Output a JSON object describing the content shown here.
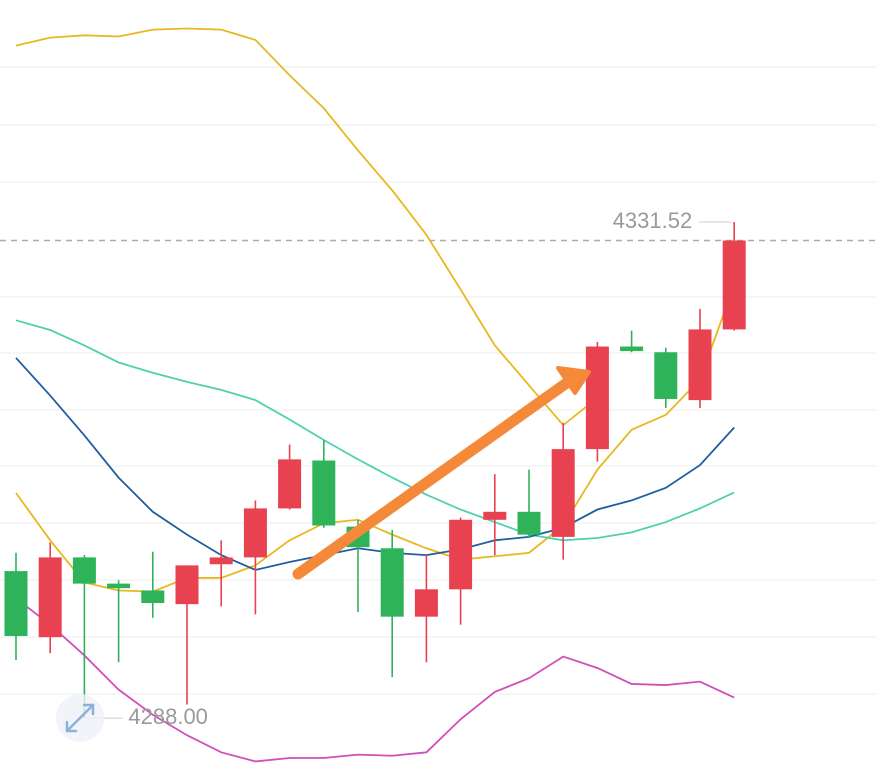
{
  "chart_data": {
    "type": "candlestick",
    "ylim": [
      4282.66,
      4351.0
    ],
    "open": [
      4300.9,
      4295.1,
      4302.1,
      4299.8,
      4299.2,
      4298.0,
      4301.5,
      4302.1,
      4306.4,
      4310.6,
      4304.8,
      4302.9,
      4296.9,
      4299.3,
      4305.4,
      4306.1,
      4303.9,
      4311.6,
      4320.6,
      4320.1,
      4315.9,
      4322.1
    ],
    "high": [
      4302.5,
      4303.4,
      4302.3,
      4300.1,
      4302.6,
      4301.4,
      4303.6,
      4307.1,
      4312.0,
      4312.4,
      4305.4,
      4304.5,
      4302.3,
      4305.6,
      4309.4,
      4309.8,
      4313.9,
      4321.0,
      4322.0,
      4320.5,
      4323.9,
      4331.52
    ],
    "low": [
      4293.1,
      4293.7,
      4288.0,
      4292.9,
      4296.8,
      4289.2,
      4297.8,
      4297.1,
      4306.3,
      4304.7,
      4297.3,
      4291.6,
      4292.9,
      4296.2,
      4302.3,
      4303.8,
      4301.9,
      4310.5,
      4320.1,
      4315.2,
      4315.2,
      4322.0
    ],
    "close": [
      4295.2,
      4302.1,
      4299.8,
      4299.4,
      4298.1,
      4301.4,
      4302.1,
      4306.4,
      4310.7,
      4304.9,
      4303.0,
      4296.9,
      4299.3,
      4305.4,
      4306.1,
      4304.1,
      4311.6,
      4320.6,
      4320.2,
      4316.0,
      4322.1,
      4329.9
    ],
    "up_color": "#e8414f",
    "down_color": "#2fb35a",
    "high_label": "4331.52",
    "low_label": "4288.00",
    "series": [
      {
        "color": "#e8b820",
        "values": [
          4347.0,
          4347.7,
          4347.9,
          4347.8,
          4348.4,
          4348.5,
          4348.4,
          4347.5,
          4344.4,
          4341.5,
          4337.8,
          4334.3,
          4330.4,
          4325.6,
          4320.7,
          4317.2,
          4313.7,
          4316.1,
          null,
          null,
          null,
          null
        ]
      },
      {
        "color": "#e8b820",
        "values": [
          4307.75,
          4303.6,
          4299.9,
          4299.2,
          4299.1,
          4300.3,
          4300.3,
          4301.4,
          4303.6,
          4305.1,
          4305.4,
          4304.1,
          4302.9,
          4301.9,
          4302.2,
          4302.5,
          4304.9,
          4309.8,
          4313.3,
          4314.6,
          4317.7,
          4326.0
        ]
      },
      {
        "color": "#4fd0b0",
        "values": [
          4322.9,
          4322.05,
          4320.7,
          4319.2,
          4318.3,
          4317.5,
          4316.8,
          4315.9,
          4314.2,
          4312.4,
          4310.7,
          4309.1,
          4307.6,
          4306.3,
          4305.2,
          4304.1,
          4303.6,
          4303.8,
          4304.3,
          4305.2,
          4306.4,
          4307.8
        ]
      },
      {
        "color": "#1f5fa0",
        "values": [
          4319.6,
          4316.3,
          4312.8,
          4309.1,
          4306.1,
          4304.1,
          4302.3,
          4301.0,
          4301.7,
          4302.3,
          4302.9,
          4302.5,
          4302.3,
          4302.8,
          4303.6,
          4303.9,
          4304.7,
          4306.3,
          4307.1,
          4308.2,
          4310.2,
          4313.5
        ]
      },
      {
        "color": "#d050b8",
        "values": [
          4298.5,
          4296.2,
          4293.5,
          4290.5,
          4288.3,
          4286.5,
          4285.0,
          4284.2,
          4284.5,
          4284.5,
          4284.8,
          4284.7,
          4285.0,
          4287.9,
          4290.3,
          4291.5,
          4293.4,
          4292.4,
          4291.0,
          4290.9,
          4291.2,
          4289.8
        ]
      }
    ]
  }
}
